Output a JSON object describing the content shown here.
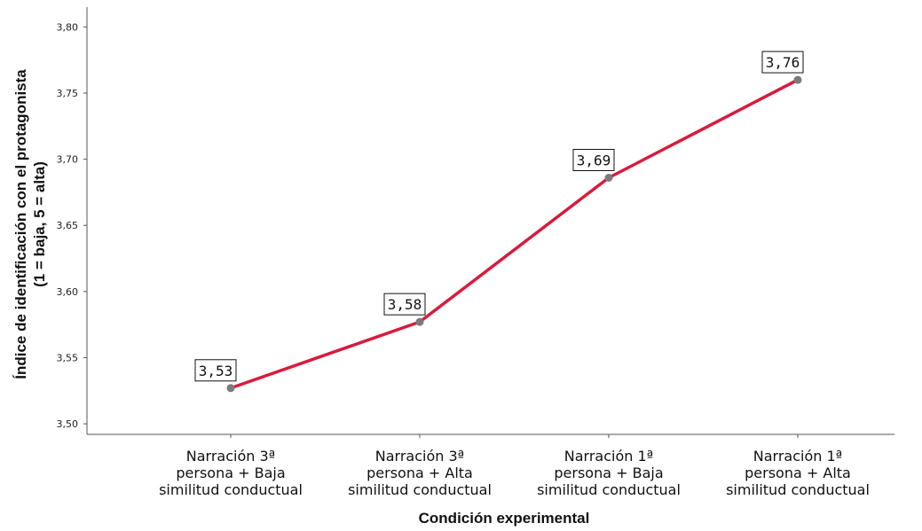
{
  "chart_data": {
    "type": "line",
    "title": "",
    "xlabel": "Condición experimental",
    "ylabel_lines": [
      "Índice de identificación con el protagonista",
      "(1 = baja, 5 = alta)"
    ],
    "categories": [
      [
        "Narración 3ª",
        "persona + Baja",
        "similitud conductual"
      ],
      [
        "Narración 3ª",
        "persona + Alta",
        "similitud conductual"
      ],
      [
        "Narración 1ª",
        "persona + Baja",
        "similitud conductual"
      ],
      [
        "Narración 1ª",
        "persona + Alta",
        "similitud conductual"
      ]
    ],
    "values": [
      3.527,
      3.577,
      3.686,
      3.76
    ],
    "data_labels": [
      "3,53",
      "3,58",
      "3,69",
      "3,76"
    ],
    "yticks": [
      3.5,
      3.55,
      3.6,
      3.65,
      3.7,
      3.75,
      3.8
    ],
    "ytick_labels": [
      "3,50",
      "3,55",
      "3,60",
      "3,65",
      "3,70",
      "3,75",
      "3,80"
    ],
    "ylim": [
      3.492,
      3.815
    ],
    "grid": false,
    "legend": "none",
    "colors": {
      "line": "#d81b3c",
      "marker": "#7a7a7a",
      "axis": "#555555",
      "text": "#111111"
    }
  }
}
